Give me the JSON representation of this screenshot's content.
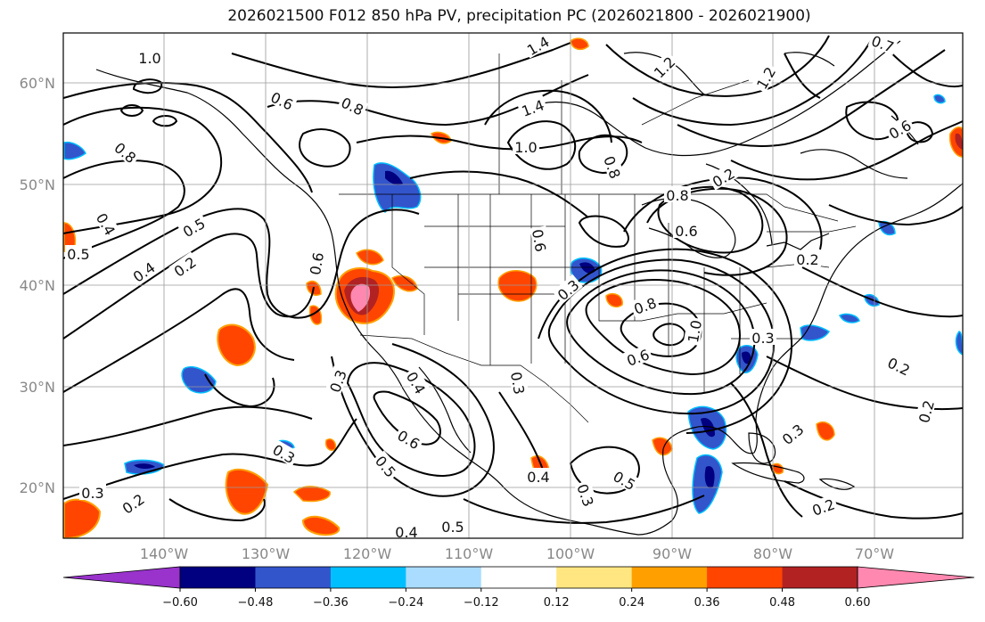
{
  "title": "2026021500 F012 850 hPa PV, precipitation PC (2026021800 - 2026021900)",
  "map": {
    "lat_labels": [
      "60°N",
      "50°N",
      "40°N",
      "30°N",
      "20°N"
    ],
    "lon_labels": [
      "140°W",
      "130°W",
      "120°W",
      "110°W",
      "100°W",
      "90°W",
      "80°W",
      "70°W"
    ],
    "contour_labels": [
      "1.0",
      "0.6",
      "0.8",
      "1.4",
      "1.2",
      "1.2",
      "0.8",
      "1.4",
      "1.0",
      "0.8",
      "0.4",
      "0.5",
      "0.4",
      "0.2",
      "0.5",
      "0.6",
      "0.6",
      "0.3",
      "0.4",
      "0.3",
      "0.6",
      "0.5",
      "0.3",
      "0.3",
      "0.3",
      "0.2",
      "0.4",
      "0.5",
      "0.3",
      "0.6",
      "0.2",
      "0.2",
      "0.3",
      "0.6",
      "0.8",
      "1.0",
      "0.8",
      "0.3",
      "0.2",
      "0.2",
      "0.5",
      "0.4",
      "0.7",
      "0.2",
      "0.6"
    ]
  },
  "colorbar": {
    "colors": [
      "#9933cc",
      "#000080",
      "#3355cc",
      "#00bfff",
      "#aadcff",
      "#ffffff",
      "#ffe680",
      "#ffa000",
      "#ff4500",
      "#b22222",
      "#ff88b0"
    ],
    "tick_labels": [
      "−0.60",
      "−0.48",
      "−0.36",
      "−0.24",
      "−0.12",
      "0.12",
      "0.24",
      "0.36",
      "0.48",
      "0.60"
    ]
  }
}
